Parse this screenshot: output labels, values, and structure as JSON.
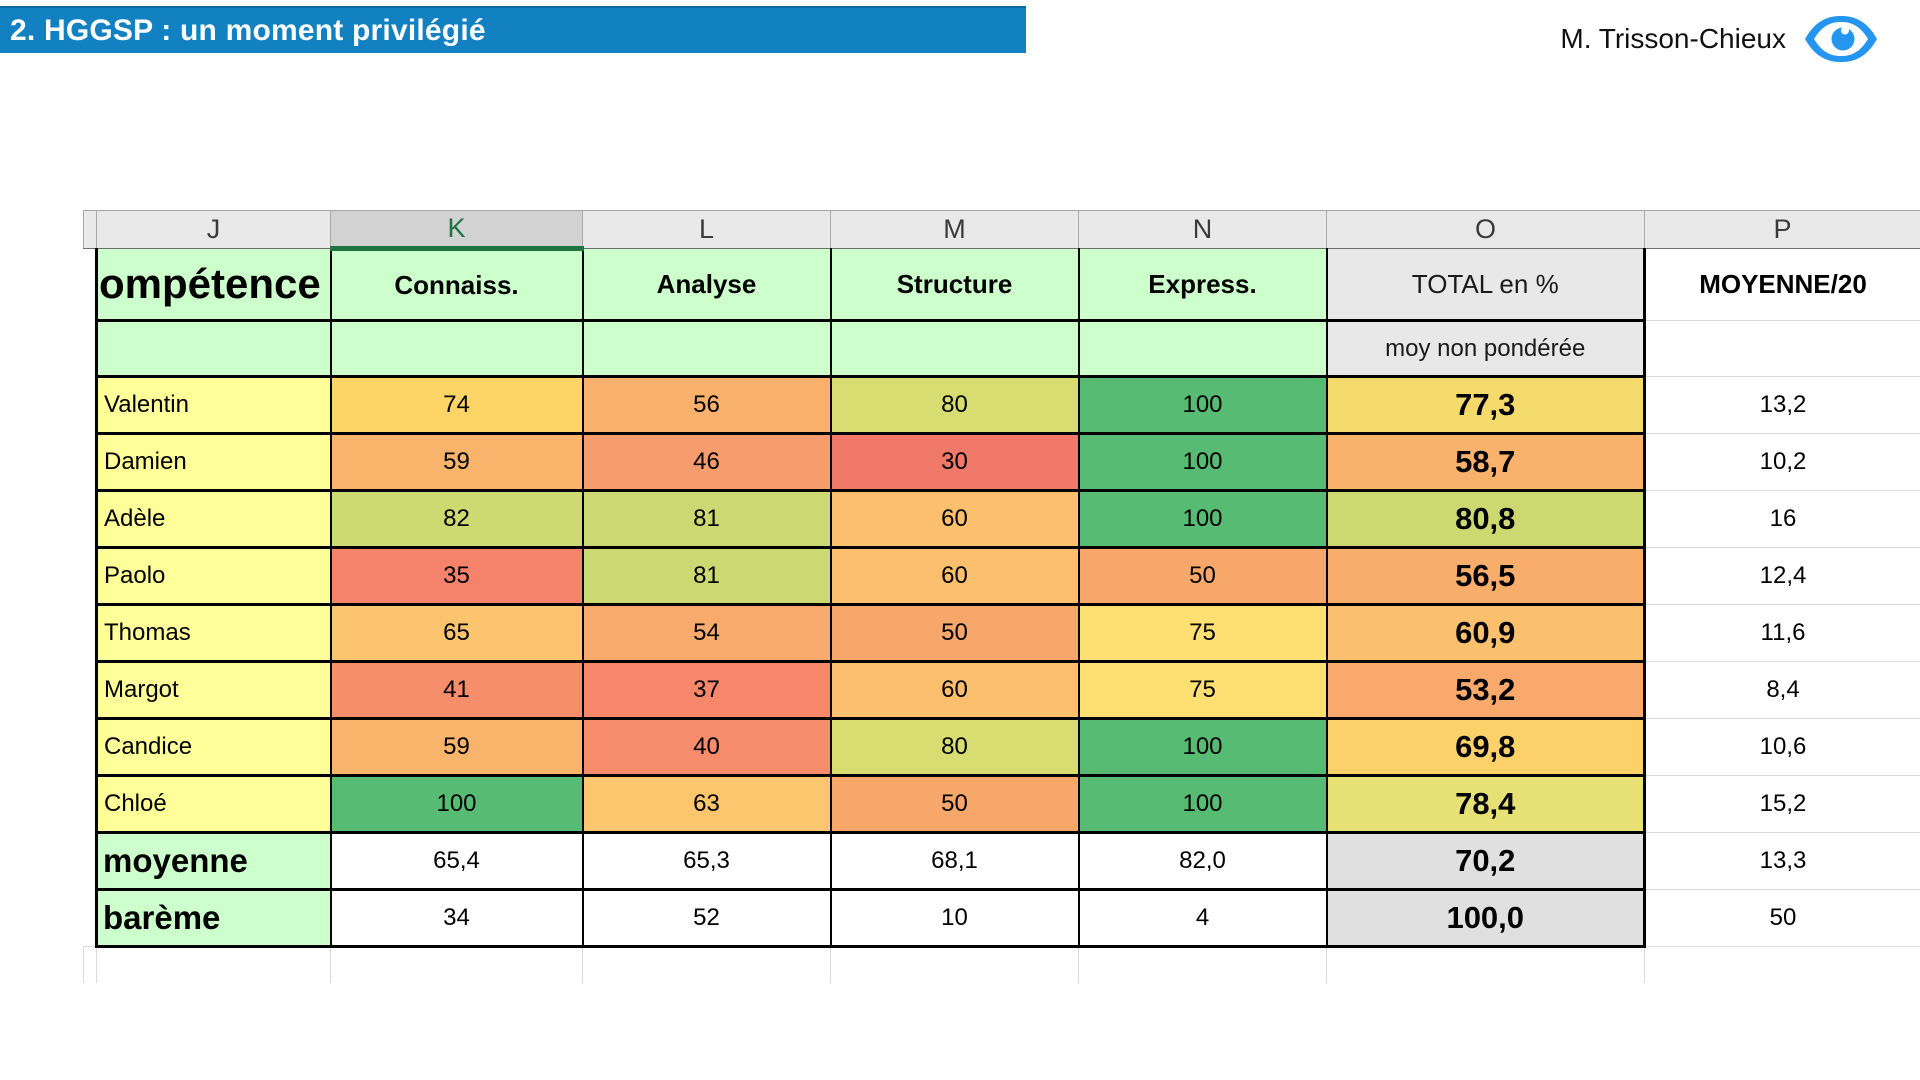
{
  "slide": {
    "title": "2. HGGSP : un moment privilégié",
    "author": "M. Trisson-Chieux",
    "eye_icon": "eye-icon",
    "colors": {
      "title_bar": "#1181c2",
      "eye": "#2596f0"
    }
  },
  "sheet": {
    "column_letters": [
      "J",
      "K",
      "L",
      "M",
      "N",
      "O",
      "P"
    ],
    "selected_column_letter": "K",
    "header": {
      "row_label": "ompétence",
      "skills": [
        "Connaiss.",
        "Analyse",
        "Structure",
        "Express."
      ],
      "total_label": "TOTAL en %",
      "average_label": "MOYENNE/20",
      "total_subtitle": "moy non pondérée"
    },
    "students": [
      {
        "name": "Valentin",
        "scores": [
          "74",
          "56",
          "80",
          "100"
        ],
        "score_colors": [
          "#fcd566",
          "#f9b16c",
          "#d7dd71",
          "#58bb74"
        ],
        "total": "77,3",
        "total_color": "#f4da6b",
        "average": "13,2"
      },
      {
        "name": "Damien",
        "scores": [
          "59",
          "46",
          "30",
          "100"
        ],
        "score_colors": [
          "#f9b46c",
          "#f79c6c",
          "#f0796a",
          "#58bb74"
        ],
        "total": "58,7",
        "total_color": "#f9b26c",
        "average": "10,2"
      },
      {
        "name": "Adèle",
        "scores": [
          "82",
          "81",
          "60",
          "100"
        ],
        "score_colors": [
          "#cdda72",
          "#cbd973",
          "#fbbf6e",
          "#58bb74"
        ],
        "total": "80,8",
        "total_color": "#ccd971",
        "average": "16"
      },
      {
        "name": "Paolo",
        "scores": [
          "35",
          "81",
          "60",
          "50"
        ],
        "score_colors": [
          "#f5826b",
          "#cbd973",
          "#fbbf6e",
          "#f8a76b"
        ],
        "total": "56,5",
        "total_color": "#f9ad6b",
        "average": "12,4"
      },
      {
        "name": "Thomas",
        "scores": [
          "65",
          "54",
          "50",
          "75"
        ],
        "score_colors": [
          "#fcc46f",
          "#f8ab6c",
          "#f8a76b",
          "#fedf72"
        ],
        "total": "60,9",
        "total_color": "#fbc06e",
        "average": "11,6"
      },
      {
        "name": "Margot",
        "scores": [
          "41",
          "37",
          "60",
          "75"
        ],
        "score_colors": [
          "#f68e6b",
          "#f6876b",
          "#fbbf6e",
          "#fedf72"
        ],
        "total": "53,2",
        "total_color": "#f8a96b",
        "average": "8,4"
      },
      {
        "name": "Candice",
        "scores": [
          "59",
          "40",
          "80",
          "100"
        ],
        "score_colors": [
          "#f9b46c",
          "#f68c6b",
          "#d7dd71",
          "#58bb74"
        ],
        "total": "69,8",
        "total_color": "#fcd169",
        "average": "10,6"
      },
      {
        "name": "Chloé",
        "scores": [
          "100",
          "63",
          "50",
          "100"
        ],
        "score_colors": [
          "#58bb74",
          "#fcc66f",
          "#f8a76b",
          "#58bb74"
        ],
        "total": "78,4",
        "total_color": "#e7e175",
        "average": "15,2"
      }
    ],
    "summary_rows": [
      {
        "name": "moyenne",
        "scores": [
          "65,4",
          "65,3",
          "68,1",
          "82,0"
        ],
        "total": "70,2",
        "average": "13,3"
      },
      {
        "name": "barème",
        "scores": [
          "34",
          "52",
          "10",
          "4"
        ],
        "total": "100,0",
        "average": "50"
      }
    ]
  }
}
